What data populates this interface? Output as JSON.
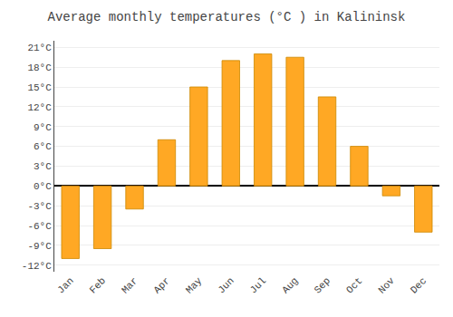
{
  "chart_data": {
    "type": "bar",
    "title": "Average monthly temperatures (°C ) in Kalininsk",
    "categories": [
      "Jan",
      "Feb",
      "Mar",
      "Apr",
      "May",
      "Jun",
      "Jul",
      "Aug",
      "Sep",
      "Oct",
      "Nov",
      "Dec"
    ],
    "values": [
      -11,
      -9.5,
      -3.5,
      7,
      15,
      19,
      20,
      19.5,
      13.5,
      6,
      -1.5,
      -7
    ],
    "color": "#FFA824",
    "ylim": [
      -13,
      22
    ],
    "yticks": [
      {
        "value": -12,
        "label": "-12°C"
      },
      {
        "value": -9,
        "label": "-9°C"
      },
      {
        "value": -6,
        "label": "-6°C"
      },
      {
        "value": -3,
        "label": "-3°C"
      },
      {
        "value": 0,
        "label": "0°C"
      },
      {
        "value": 3,
        "label": "3°C"
      },
      {
        "value": 6,
        "label": "6°C"
      },
      {
        "value": 9,
        "label": "9°C"
      },
      {
        "value": 12,
        "label": "12°C"
      },
      {
        "value": 15,
        "label": "15°C"
      },
      {
        "value": 18,
        "label": "18°C"
      },
      {
        "value": 21,
        "label": "21°C"
      }
    ],
    "grid": true
  }
}
